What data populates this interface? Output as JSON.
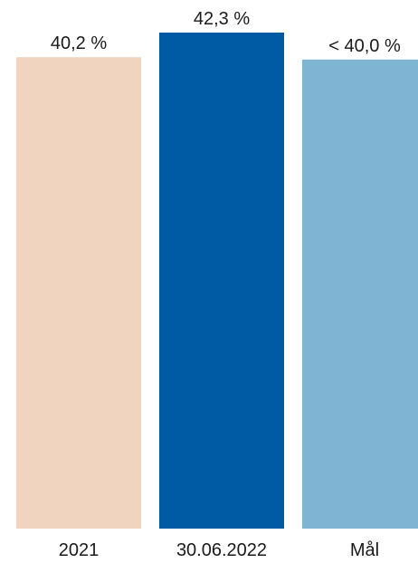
{
  "chart_data": {
    "type": "bar",
    "categories": [
      "2021",
      "30.06.2022",
      "Mål"
    ],
    "values": [
      40.2,
      42.3,
      40.0
    ],
    "data_labels": [
      "40,2 %",
      "42,3 %",
      "< 40,0 %"
    ],
    "colors": [
      "#f1d4bf",
      "#005aa4",
      "#7fb4d3"
    ],
    "title": "",
    "xlabel": "",
    "ylabel": "",
    "ylim": [
      0,
      42.3
    ],
    "grid": false
  }
}
